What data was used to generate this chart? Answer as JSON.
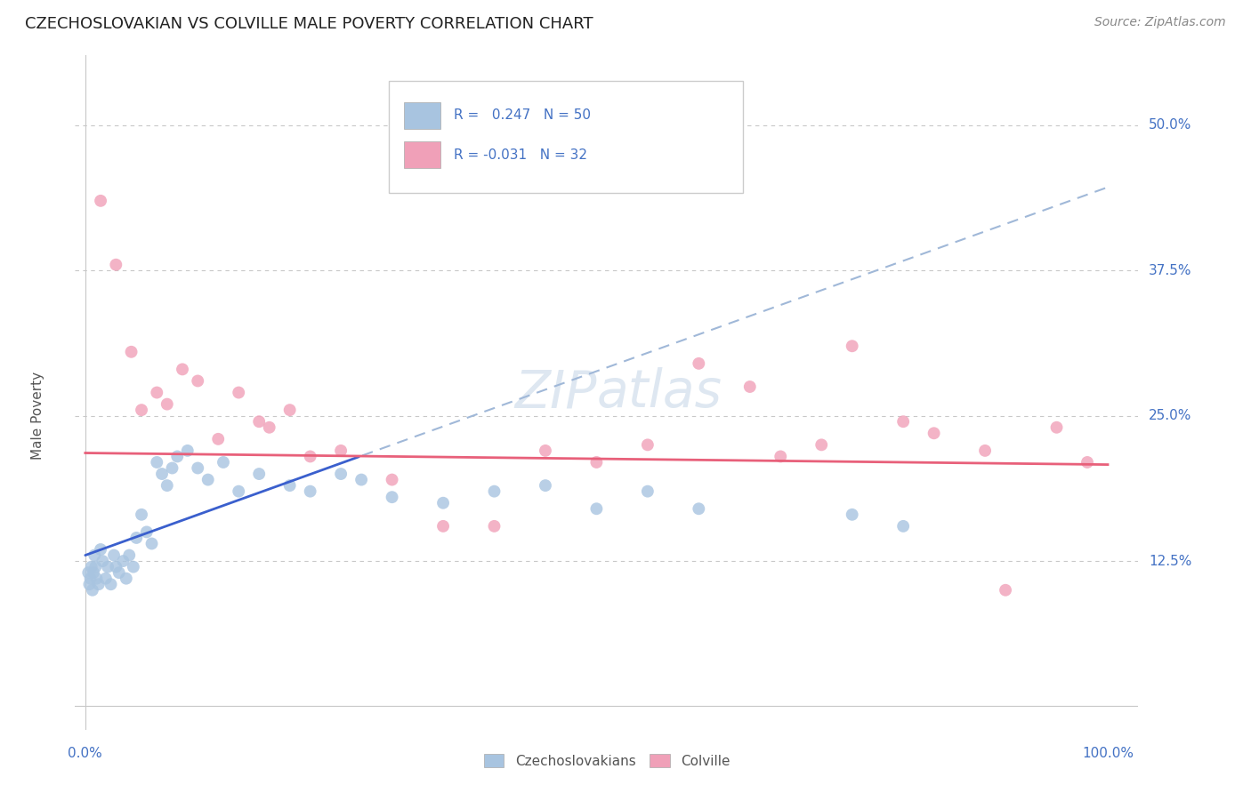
{
  "title": "CZECHOSLOVAKIAN VS COLVILLE MALE POVERTY CORRELATION CHART",
  "source": "Source: ZipAtlas.com",
  "ylabel": "Male Poverty",
  "background_color": "#ffffff",
  "grid_color": "#c8c8c8",
  "blue_color": "#a8c4e0",
  "pink_color": "#f0a0b8",
  "blue_line_color": "#3a5fcd",
  "pink_line_color": "#e8607a",
  "dashed_line_color": "#a0b8d8",
  "legend": {
    "blue_R": " 0.247",
    "blue_N": "50",
    "pink_R": "-0.031",
    "pink_N": "32"
  },
  "czech_x": [
    0.3,
    0.5,
    0.7,
    0.8,
    1.0,
    1.2,
    1.5,
    1.8,
    2.0,
    2.2,
    2.5,
    2.8,
    3.0,
    3.2,
    3.5,
    3.8,
    4.0,
    4.2,
    4.5,
    4.8,
    5.0,
    5.2,
    5.5,
    5.8,
    6.0,
    6.2,
    6.5,
    7.0,
    7.5,
    8.0,
    8.5,
    9.0,
    10.0,
    11.0,
    12.0,
    13.0,
    14.0,
    15.0,
    17.0,
    20.0,
    22.0,
    25.0,
    30.0,
    35.0,
    40.0,
    50.0,
    55.0,
    60.0,
    75.0,
    80.0
  ],
  "czech_y": [
    11.0,
    10.5,
    12.0,
    11.0,
    13.0,
    10.0,
    11.0,
    12.0,
    10.0,
    11.5,
    13.0,
    12.0,
    11.0,
    10.0,
    12.5,
    11.5,
    13.0,
    12.0,
    11.0,
    10.0,
    14.5,
    16.5,
    15.0,
    13.5,
    14.0,
    13.0,
    15.0,
    14.0,
    21.0,
    20.5,
    18.5,
    20.0,
    22.0,
    21.0,
    19.5,
    20.5,
    19.0,
    18.0,
    20.0,
    19.0,
    18.5,
    19.5,
    18.0,
    17.5,
    19.0,
    17.0,
    18.5,
    17.0,
    16.5,
    15.5
  ],
  "colville_x": [
    1.0,
    2.0,
    3.5,
    4.0,
    5.0,
    6.0,
    7.5,
    8.5,
    10.0,
    12.0,
    14.0,
    15.0,
    18.0,
    20.0,
    25.0,
    30.0,
    35.0,
    40.0,
    45.0,
    50.0,
    55.0,
    60.0,
    65.0,
    70.0,
    72.0,
    75.0,
    80.0,
    83.0,
    88.0,
    90.0,
    95.0,
    98.0
  ],
  "colville_y": [
    43.0,
    38.0,
    30.0,
    32.0,
    25.5,
    23.0,
    27.0,
    26.0,
    29.0,
    28.0,
    22.5,
    27.0,
    24.0,
    25.0,
    21.5,
    19.5,
    15.5,
    15.5,
    21.5,
    20.0,
    22.0,
    29.0,
    27.5,
    21.0,
    22.0,
    30.5,
    24.5,
    23.0,
    22.0,
    10.0,
    23.5,
    21.0
  ]
}
